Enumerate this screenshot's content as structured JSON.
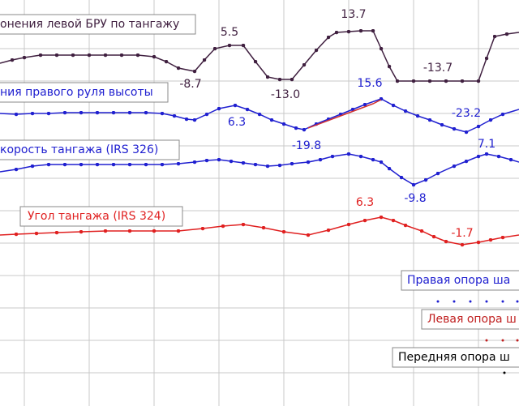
{
  "traces": [
    {
      "label": "онения левой БРУ по тангажу",
      "annotations": [
        "5.5",
        "-8.7",
        "-13.0",
        "13.7",
        "-13.7"
      ]
    },
    {
      "label": "ния правого руля высоты",
      "annotations": [
        "6.3",
        "-19.8",
        "15.6",
        "-23.2"
      ]
    },
    {
      "label": "корость тангажа (IRS 326)",
      "annotations": [
        "-9.8",
        "7.1"
      ]
    },
    {
      "label": "Угол тангажа (IRS 324)",
      "annotations": [
        "6.3",
        "-1.7"
      ]
    }
  ],
  "legend": [
    "Правая опора ша",
    "Левая опора ш",
    "Передняя опора ш"
  ]
}
